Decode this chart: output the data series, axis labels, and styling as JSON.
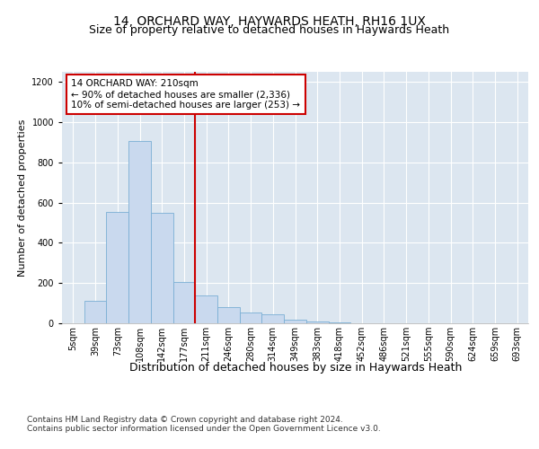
{
  "title": "14, ORCHARD WAY, HAYWARDS HEATH, RH16 1UX",
  "subtitle": "Size of property relative to detached houses in Haywards Heath",
  "xlabel": "Distribution of detached houses by size in Haywards Heath",
  "ylabel": "Number of detached properties",
  "footer1": "Contains HM Land Registry data © Crown copyright and database right 2024.",
  "footer2": "Contains public sector information licensed under the Open Government Licence v3.0.",
  "annotation_title": "14 ORCHARD WAY: 210sqm",
  "annotation_line1": "← 90% of detached houses are smaller (2,336)",
  "annotation_line2": "10% of semi-detached houses are larger (253) →",
  "bar_color": "#c9d9ee",
  "bar_edge_color": "#7aafd4",
  "vline_color": "#cc0000",
  "vline_x_index": 6,
  "annotation_box_color": "#ffffff",
  "annotation_box_edge": "#cc0000",
  "categories": [
    "5sqm",
    "39sqm",
    "73sqm",
    "108sqm",
    "142sqm",
    "177sqm",
    "211sqm",
    "246sqm",
    "280sqm",
    "314sqm",
    "349sqm",
    "383sqm",
    "418sqm",
    "452sqm",
    "486sqm",
    "521sqm",
    "555sqm",
    "590sqm",
    "624sqm",
    "659sqm",
    "693sqm"
  ],
  "values": [
    0,
    110,
    555,
    905,
    550,
    205,
    140,
    80,
    55,
    45,
    20,
    8,
    5,
    0,
    0,
    0,
    0,
    0,
    0,
    0,
    0
  ],
  "ylim": [
    0,
    1250
  ],
  "yticks": [
    0,
    200,
    400,
    600,
    800,
    1000,
    1200
  ],
  "background_color": "#dce6f0",
  "fig_background": "#ffffff",
  "title_fontsize": 10,
  "subtitle_fontsize": 9,
  "ylabel_fontsize": 8,
  "xlabel_fontsize": 9,
  "tick_fontsize": 7,
  "annotation_fontsize": 7.5,
  "footer_fontsize": 6.5
}
